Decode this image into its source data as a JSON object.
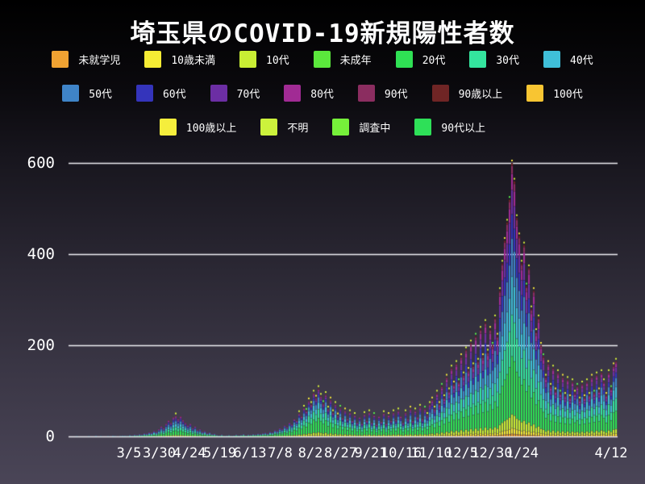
{
  "title": "埼玉県のCOVID-19新規陽性者数",
  "colors": {
    "background_top": "#000000",
    "background_bottom": "#4a4557",
    "grid": "#f0f0f5",
    "text": "#ffffff",
    "bar_edge": "rgba(15,15,22,0.5)",
    "marker_colors": [
      "#d4ee38",
      "#f2e43a",
      "#55e84a"
    ]
  },
  "chart_data": {
    "type": "bar",
    "subtype": "stacked-daily-bars",
    "title": "埼玉県のCOVID-19新規陽性者数",
    "xlabel": "",
    "ylabel": "",
    "ylim": [
      0,
      620
    ],
    "y_ticks": [
      0,
      200,
      400,
      600
    ],
    "grid": "horizontal-white-lines",
    "legend_position": "top-3-rows",
    "x_ticks": [
      {
        "label": "3/5",
        "day": 50
      },
      {
        "label": "3/30",
        "day": 75
      },
      {
        "label": "4/24",
        "day": 100
      },
      {
        "label": "5/19",
        "day": 125
      },
      {
        "label": "6/13",
        "day": 150
      },
      {
        "label": "7/8",
        "day": 175
      },
      {
        "label": "8/2",
        "day": 200
      },
      {
        "label": "8/27",
        "day": 225
      },
      {
        "label": "9/21",
        "day": 250
      },
      {
        "label": "10/16",
        "day": 275
      },
      {
        "label": "11/10",
        "day": 300
      },
      {
        "label": "12/5",
        "day": 325
      },
      {
        "label": "12/30",
        "day": 350
      },
      {
        "label": "1/24",
        "day": 375
      },
      {
        "label": "4/12",
        "day": 453
      }
    ],
    "days_total": 454,
    "groups": [
      {
        "label": "未就学児",
        "color": "#f0a232"
      },
      {
        "label": "10歳未満",
        "color": "#f5ec34"
      },
      {
        "label": "10代",
        "color": "#c8ee34"
      },
      {
        "label": "未成年",
        "color": "#5be83c"
      },
      {
        "label": "20代",
        "color": "#2fe054"
      },
      {
        "label": "30代",
        "color": "#34e49e"
      },
      {
        "label": "40代",
        "color": "#3fbfd9"
      },
      {
        "label": "50代",
        "color": "#3f84c8"
      },
      {
        "label": "60代",
        "color": "#3434bb"
      },
      {
        "label": "70代",
        "color": "#6c2ea4"
      },
      {
        "label": "80代",
        "color": "#a12b94"
      },
      {
        "label": "90代",
        "color": "#8b2d60"
      },
      {
        "label": "90歳以上",
        "color": "#6f2525"
      },
      {
        "label": "100代",
        "color": "#f8c532"
      },
      {
        "label": "100歳以上",
        "color": "#f5ee3c"
      },
      {
        "label": "不明",
        "color": "#ccf23c"
      },
      {
        "label": "調査中",
        "color": "#76f03a"
      },
      {
        "label": "90代以上",
        "color": "#2ee058"
      }
    ],
    "legend_rows": [
      [
        0,
        1,
        2,
        3,
        4,
        5,
        6
      ],
      [
        7,
        8,
        9,
        10,
        11,
        12,
        13
      ],
      [
        14,
        15,
        16,
        17
      ]
    ],
    "days_per_bar": 2,
    "totals": [
      0,
      0,
      0,
      1,
      0,
      0,
      0,
      0,
      1,
      0,
      0,
      2,
      0,
      1,
      0,
      0,
      1,
      0,
      2,
      1,
      0,
      1,
      2,
      2,
      1,
      3,
      2,
      4,
      3,
      5,
      4,
      7,
      6,
      9,
      8,
      12,
      10,
      16,
      22,
      18,
      28,
      35,
      30,
      42,
      45,
      38,
      44,
      36,
      30,
      24,
      28,
      18,
      22,
      14,
      16,
      10,
      12,
      7,
      9,
      5,
      6,
      3,
      2,
      4,
      1,
      2,
      3,
      1,
      2,
      4,
      2,
      3,
      5,
      2,
      4,
      3,
      5,
      4,
      6,
      5,
      7,
      8,
      6,
      10,
      9,
      14,
      12,
      18,
      16,
      24,
      20,
      30,
      26,
      38,
      34,
      50,
      44,
      62,
      55,
      78,
      70,
      95,
      84,
      105,
      88,
      72,
      92,
      60,
      80,
      52,
      70,
      45,
      62,
      40,
      56,
      38,
      52,
      34,
      46,
      30,
      42,
      28,
      48,
      34,
      52,
      30,
      46,
      26,
      44,
      32,
      50,
      28,
      46,
      34,
      52,
      36,
      56,
      44,
      30,
      52,
      38,
      60,
      34,
      56,
      42,
      64,
      38,
      60,
      46,
      70,
      80,
      60,
      95,
      70,
      110,
      85,
      130,
      100,
      150,
      115,
      160,
      120,
      175,
      135,
      190,
      145,
      205,
      155,
      220,
      165,
      235,
      175,
      250,
      185,
      235,
      200,
      260,
      220,
      320,
      380,
      430,
      470,
      520,
      600,
      560,
      480,
      440,
      380,
      420,
      330,
      370,
      280,
      320,
      230,
      260,
      200,
      175,
      130,
      160,
      110,
      150,
      100,
      140,
      95,
      130,
      90,
      125,
      85,
      120,
      95,
      110,
      80,
      115,
      85,
      120,
      90,
      130,
      95,
      135,
      100,
      140,
      120,
      90,
      140,
      105,
      155,
      165
    ],
    "composition_keyframes": [
      {
        "index": 0,
        "fractions": [
          0.01,
          0.01,
          0.03,
          0,
          0.16,
          0.16,
          0.17,
          0.16,
          0.1,
          0.1,
          0.06,
          0.03,
          0.01,
          0,
          0,
          0,
          0,
          0
        ]
      },
      {
        "index": 100,
        "fractions": [
          0.01,
          0.02,
          0.06,
          0,
          0.3,
          0.19,
          0.14,
          0.11,
          0.06,
          0.05,
          0.03,
          0.02,
          0.01,
          0,
          0,
          0,
          0,
          0
        ]
      },
      {
        "index": 180,
        "fractions": [
          0.01,
          0.02,
          0.05,
          0,
          0.21,
          0.15,
          0.14,
          0.14,
          0.09,
          0.09,
          0.06,
          0.03,
          0.01,
          0,
          0,
          0,
          0,
          0
        ]
      },
      {
        "index": 226,
        "fractions": [
          0.01,
          0.03,
          0.06,
          0,
          0.24,
          0.17,
          0.15,
          0.12,
          0.07,
          0.07,
          0.05,
          0.02,
          0.01,
          0,
          0,
          0,
          0,
          0
        ]
      }
    ],
    "marker_threshold": 45
  }
}
